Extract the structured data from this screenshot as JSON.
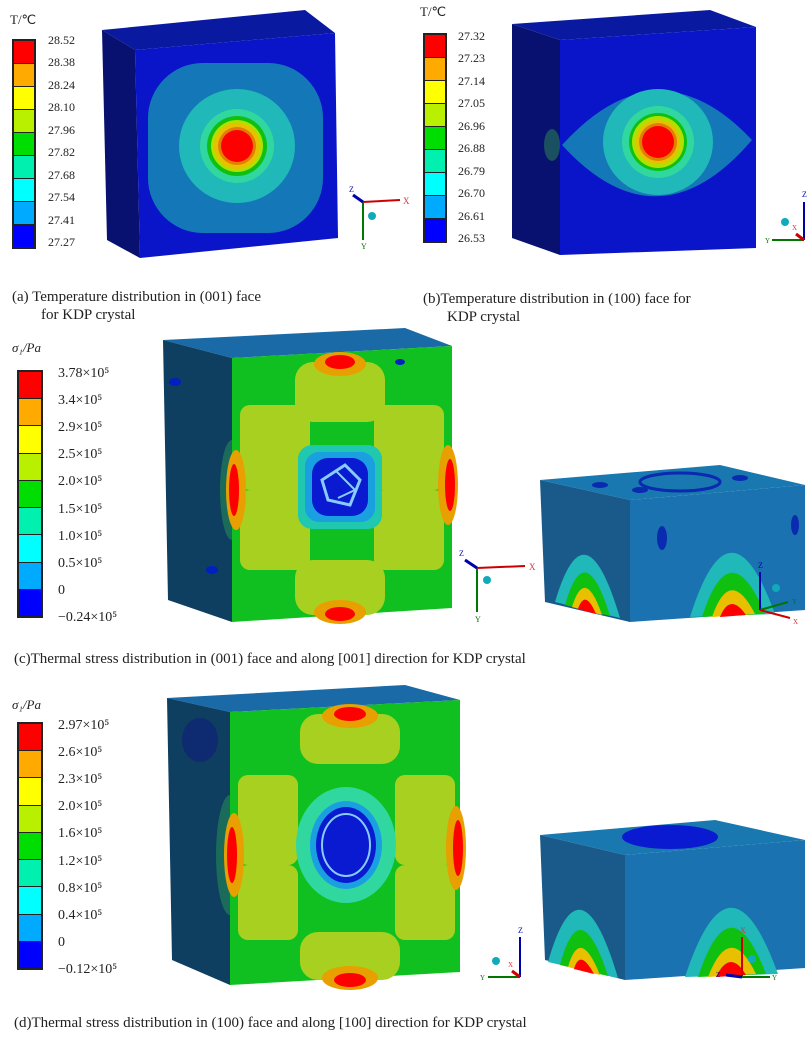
{
  "palette": [
    "#ff0000",
    "#ffaa00",
    "#ffff00",
    "#b8f000",
    "#00dd00",
    "#00f0b0",
    "#00ffff",
    "#00aaff",
    "#0000ff"
  ],
  "panel_a": {
    "legend_title": "T/℃",
    "legend_values": [
      "28.52",
      "28.38",
      "28.24",
      "28.10",
      "27.96",
      "27.82",
      "27.68",
      "27.54",
      "27.41",
      "27.27"
    ],
    "caption_line1": "(a)  Temperature distribution in (001) face",
    "caption_line2": "for KDP crystal",
    "axes": {
      "x": "X",
      "y": "Y",
      "z": "Z"
    }
  },
  "panel_b": {
    "legend_title": "T/℃",
    "legend_values": [
      "27.32",
      "27.23",
      "27.14",
      "27.05",
      "26.96",
      "26.88",
      "26.79",
      "26.70",
      "26.61",
      "26.53"
    ],
    "caption_line1": "(b)Temperature distribution in (100) face for",
    "caption_line2": "KDP crystal",
    "axes": {
      "x": "X",
      "y": "Y",
      "z": "Z"
    }
  },
  "panel_c": {
    "legend_title": "σ₁/Pa",
    "legend_values": [
      "3.78×10⁵",
      "3.4×10⁵",
      "2.9×10⁵",
      "2.5×10⁵",
      "2.0×10⁵",
      "1.5×10⁵",
      "1.0×10⁵",
      "0.5×10⁵",
      "0",
      "−0.24×10⁵"
    ],
    "caption": "(c)Thermal stress distribution in (001) face and along [001] direction for KDP crystal",
    "axes": {
      "x": "X",
      "y": "Y",
      "z": "Z"
    }
  },
  "panel_d": {
    "legend_title": "σ₁/Pa",
    "legend_values": [
      "2.97×10⁵",
      "2.6×10⁵",
      "2.3×10⁵",
      "2.0×10⁵",
      "1.6×10⁵",
      "1.2×10⁵",
      "0.8×10⁵",
      "0.4×10⁵",
      "0",
      "−0.12×10⁵"
    ],
    "caption": "(d)Thermal stress distribution in (100) face and along [100] direction for KDP crystal",
    "axes": {
      "x": "X",
      "y": "Y",
      "z": "Z"
    }
  }
}
